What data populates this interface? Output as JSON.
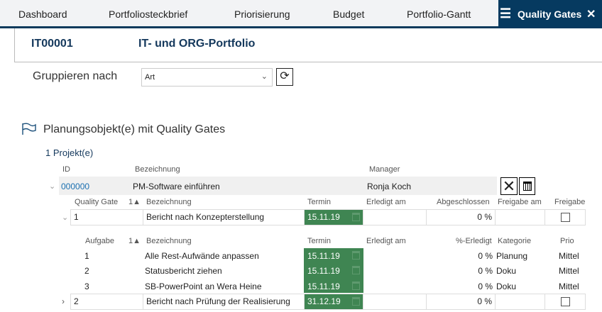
{
  "tabs": [
    "Dashboard",
    "Portfoliosteckbrief",
    "Priorisierung",
    "Budget",
    "Portfolio-Gantt"
  ],
  "active_tab": "Quality Gates",
  "portfolio": {
    "id": "IT00001",
    "title": "IT- und ORG-Portfolio"
  },
  "group": {
    "label": "Gruppieren nach",
    "value": "Art"
  },
  "section_title": "Planungsobjekt(e) mit Quality Gates",
  "project_count": "1 Projekt(e)",
  "project_headers": {
    "id": "ID",
    "name": "Bezeichnung",
    "manager": "Manager"
  },
  "project": {
    "id": "000000",
    "name": "PM-Software einführen",
    "manager": "Ronja Koch"
  },
  "qg_headers": {
    "gate": "Quality Gate",
    "sort": "1",
    "name": "Bezeichnung",
    "date": "Termin",
    "done_on": "Erledigt am",
    "closed": "Abgeschlossen",
    "release_on": "Freigabe am",
    "release": "Freigabe"
  },
  "task_headers": {
    "task": "Aufgabe",
    "sort": "1",
    "name": "Bezeichnung",
    "date": "Termin",
    "done_on": "Erledigt am",
    "pct": "%-Erledigt",
    "category": "Kategorie",
    "prio": "Prio"
  },
  "gates": [
    {
      "nr": "1",
      "name": "Bericht nach Konzepterstellung",
      "date": "15.11.19",
      "closed": "0 %",
      "released": false
    },
    {
      "nr": "2",
      "name": "Bericht nach Prüfung der Realisierung",
      "date": "31.12.19",
      "closed": "0 %",
      "released": false
    }
  ],
  "tasks": [
    {
      "nr": "1",
      "name": "Alle Rest-Aufwände anpassen",
      "date": "15.11.19",
      "pct": "0 %",
      "category": "Planung",
      "prio": "Mittel"
    },
    {
      "nr": "2",
      "name": "Statusbericht ziehen",
      "date": "15.11.19",
      "pct": "0 %",
      "category": "Doku",
      "prio": "Mittel"
    },
    {
      "nr": "3",
      "name": "SB-PowerPoint an Wera Heine",
      "date": "15.11.19",
      "pct": "0 %",
      "category": "Doku",
      "prio": "Mittel"
    }
  ],
  "colors": {
    "navy": "#063a60",
    "termin_green": "#3f8552",
    "link_blue": "#1a6fb0"
  }
}
